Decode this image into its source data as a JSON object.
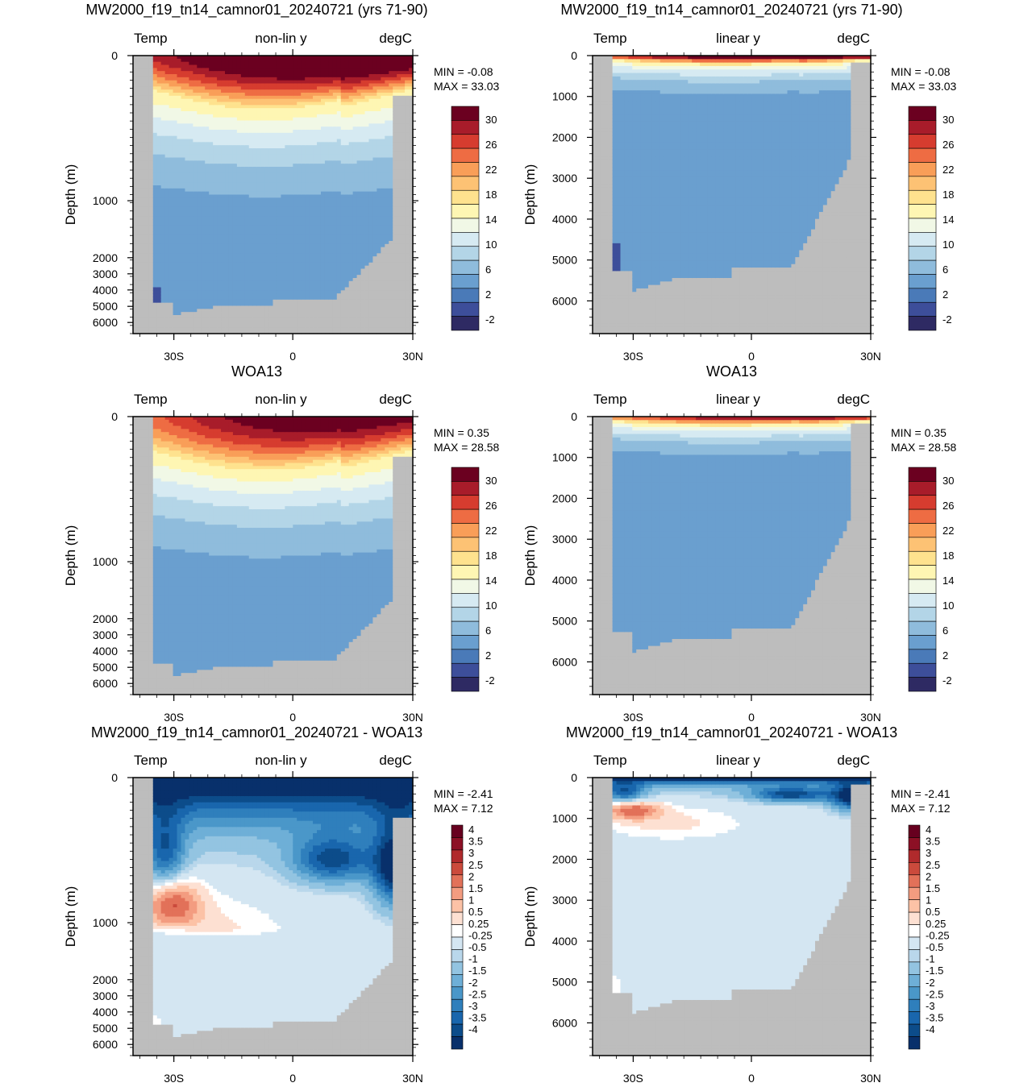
{
  "chart_data": [
    {
      "type": "heatmap",
      "title": "MW2000_f19_tn14_camnor01_20240721 (yrs 71-90)",
      "left_label": "Temp",
      "center_label": "non-lin y",
      "right_label": "degC",
      "ylabel": "Depth (m)",
      "x_ticks": [
        "30S",
        "0",
        "30N"
      ],
      "y_ticks": [
        "0",
        "1000",
        "2000",
        "3000",
        "4000",
        "5000",
        "6000"
      ],
      "y_scale": "non-linear",
      "min_text": "MIN =  -0.08",
      "max_text": "MAX =  33.03",
      "colorbar_labels": [
        "30",
        "26",
        "22",
        "18",
        "14",
        "10",
        "6",
        "2",
        "-2"
      ],
      "field": "model"
    },
    {
      "type": "heatmap",
      "title": "MW2000_f19_tn14_camnor01_20240721 (yrs 71-90)",
      "left_label": "Temp",
      "center_label": "linear y",
      "right_label": "degC",
      "ylabel": "Depth (m)",
      "x_ticks": [
        "30S",
        "0",
        "30N"
      ],
      "y_ticks": [
        "0",
        "1000",
        "2000",
        "3000",
        "4000",
        "5000",
        "6000"
      ],
      "y_scale": "linear",
      "min_text": "MIN =  -0.08",
      "max_text": "MAX =  33.03",
      "colorbar_labels": [
        "30",
        "26",
        "22",
        "18",
        "14",
        "10",
        "6",
        "2",
        "-2"
      ],
      "field": "model"
    },
    {
      "type": "heatmap",
      "title": "WOA13",
      "left_label": "Temp",
      "center_label": "non-lin y",
      "right_label": "degC",
      "ylabel": "Depth (m)",
      "x_ticks": [
        "30S",
        "0",
        "30N"
      ],
      "y_ticks": [
        "0",
        "1000",
        "2000",
        "3000",
        "4000",
        "5000",
        "6000"
      ],
      "y_scale": "non-linear",
      "min_text": "MIN =  0.35",
      "max_text": "MAX =  28.58",
      "colorbar_labels": [
        "30",
        "26",
        "22",
        "18",
        "14",
        "10",
        "6",
        "2",
        "-2"
      ],
      "field": "obs"
    },
    {
      "type": "heatmap",
      "title": "WOA13",
      "left_label": "Temp",
      "center_label": "linear y",
      "right_label": "degC",
      "ylabel": "Depth (m)",
      "x_ticks": [
        "30S",
        "0",
        "30N"
      ],
      "y_ticks": [
        "0",
        "1000",
        "2000",
        "3000",
        "4000",
        "5000",
        "6000"
      ],
      "y_scale": "linear",
      "min_text": "MIN =  0.35",
      "max_text": "MAX =  28.58",
      "colorbar_labels": [
        "30",
        "26",
        "22",
        "18",
        "14",
        "10",
        "6",
        "2",
        "-2"
      ],
      "field": "obs"
    },
    {
      "type": "heatmap",
      "title": "MW2000_f19_tn14_camnor01_20240721 - WOA13",
      "left_label": "Temp",
      "center_label": "non-lin y",
      "right_label": "degC",
      "ylabel": "Depth (m)",
      "x_ticks": [
        "30S",
        "0",
        "30N"
      ],
      "y_ticks": [
        "0",
        "1000",
        "2000",
        "3000",
        "4000",
        "5000",
        "6000"
      ],
      "y_scale": "non-linear",
      "min_text": "MIN =  -2.41",
      "max_text": "MAX =   7.12",
      "colorbar_labels": [
        "4",
        "3.5",
        "3",
        "2.5",
        "2",
        "1.5",
        "1",
        "0.5",
        "0.25",
        "-0.25",
        "-0.5",
        "-1",
        "-1.5",
        "-2",
        "-2.5",
        "-3",
        "-3.5",
        "-4"
      ],
      "field": "diff"
    },
    {
      "type": "heatmap",
      "title": "MW2000_f19_tn14_camnor01_20240721 - WOA13",
      "left_label": "Temp",
      "center_label": "linear y",
      "right_label": "degC",
      "ylabel": "Depth (m)",
      "x_ticks": [
        "30S",
        "0",
        "30N"
      ],
      "y_ticks": [
        "0",
        "1000",
        "2000",
        "3000",
        "4000",
        "5000",
        "6000"
      ],
      "y_scale": "linear",
      "min_text": "MIN =  -2.41",
      "max_text": "MAX =   7.12",
      "colorbar_labels": [
        "4",
        "3.5",
        "3",
        "2.5",
        "2",
        "1.5",
        "1",
        "0.5",
        "0.25",
        "-0.25",
        "-0.5",
        "-1",
        "-1.5",
        "-2",
        "-2.5",
        "-3",
        "-3.5",
        "-4"
      ],
      "field": "diff"
    }
  ],
  "colors": {
    "temp_scale": [
      "#2e2a63",
      "#3d4e9a",
      "#4a7ab8",
      "#6a9fcf",
      "#8fbcdc",
      "#b3d5e7",
      "#d6eaf2",
      "#f1f8e6",
      "#fef6b3",
      "#fee28e",
      "#fdc274",
      "#f99e58",
      "#ee6c43",
      "#d63c2f",
      "#a81c2a",
      "#6b0020"
    ],
    "diff_scale": [
      "#08306b",
      "#0c4c8a",
      "#1966ad",
      "#2f7fbc",
      "#4a97c9",
      "#6eafd7",
      "#93c4e1",
      "#b9d7eb",
      "#d4e6f2",
      "#ffffff",
      "#fde0d2",
      "#fcc2a6",
      "#f39c80",
      "#e27159",
      "#cb4a3c",
      "#b02a2c",
      "#8c1025",
      "#67001f"
    ],
    "land": "#bdbdbd"
  }
}
